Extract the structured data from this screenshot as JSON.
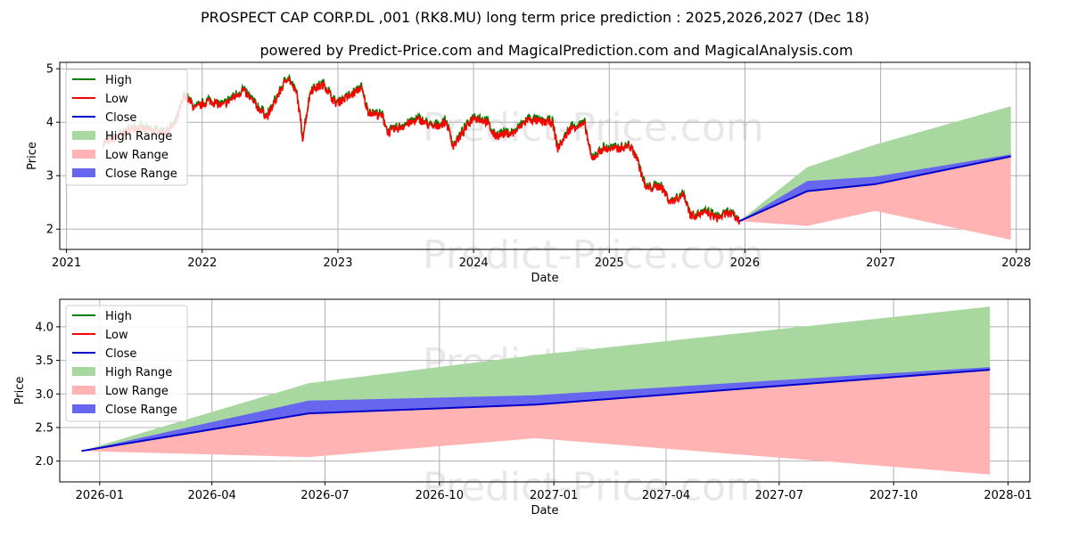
{
  "title": "PROSPECT CAP CORP.DL ,001 (RK8.MU) long term price prediction : 2025,2026,2027 (Dec 18)",
  "subtitle": "powered by Predict-Price.com and MagicalPrediction.com and MagicalAnalysis.com",
  "watermark": "Predict-Price.com",
  "colors": {
    "high": "#008000",
    "low": "#ff0000",
    "close": "#0000cc",
    "high_range": "#a8d8a0",
    "low_range": "#ffb3b3",
    "close_range": "#6666ee",
    "grid": "#b0b0b0",
    "watermark": "#e8e8e8"
  },
  "legend": {
    "high": "High",
    "low": "Low",
    "close": "Close",
    "high_range": "High Range",
    "low_range": "Low Range",
    "close_range": "Close Range"
  },
  "chart_data": [
    {
      "type": "line",
      "name": "long-term",
      "xlabel": "Date",
      "ylabel": "Price",
      "xlim": [
        2020.95,
        2028.1
      ],
      "ylim": [
        1.62,
        5.12
      ],
      "xticks": [
        {
          "v": 2021,
          "label": "2021"
        },
        {
          "v": 2022,
          "label": "2022"
        },
        {
          "v": 2023,
          "label": "2023"
        },
        {
          "v": 2024,
          "label": "2024"
        },
        {
          "v": 2025,
          "label": "2025"
        },
        {
          "v": 2026,
          "label": "2026"
        },
        {
          "v": 2027,
          "label": "2027"
        },
        {
          "v": 2028,
          "label": "2028"
        }
      ],
      "yticks": [
        {
          "v": 2,
          "label": "2"
        },
        {
          "v": 3,
          "label": "3"
        },
        {
          "v": 4,
          "label": "4"
        },
        {
          "v": 5,
          "label": "5"
        }
      ],
      "history_keypoints": [
        [
          2021.27,
          3.6
        ],
        [
          2021.4,
          3.75
        ],
        [
          2021.5,
          3.9
        ],
        [
          2021.6,
          3.85
        ],
        [
          2021.72,
          3.8
        ],
        [
          2021.8,
          3.95
        ],
        [
          2021.87,
          4.5
        ],
        [
          2021.95,
          4.25
        ],
        [
          2022.05,
          4.4
        ],
        [
          2022.15,
          4.3
        ],
        [
          2022.3,
          4.6
        ],
        [
          2022.4,
          4.3
        ],
        [
          2022.48,
          4.1
        ],
        [
          2022.58,
          4.6
        ],
        [
          2022.63,
          4.85
        ],
        [
          2022.7,
          4.5
        ],
        [
          2022.74,
          3.7
        ],
        [
          2022.8,
          4.6
        ],
        [
          2022.9,
          4.7
        ],
        [
          2022.98,
          4.35
        ],
        [
          2023.1,
          4.5
        ],
        [
          2023.17,
          4.65
        ],
        [
          2023.22,
          4.2
        ],
        [
          2023.33,
          4.1
        ],
        [
          2023.37,
          3.8
        ],
        [
          2023.5,
          3.95
        ],
        [
          2023.6,
          4.05
        ],
        [
          2023.7,
          3.9
        ],
        [
          2023.8,
          4.0
        ],
        [
          2023.85,
          3.55
        ],
        [
          2023.92,
          3.8
        ],
        [
          2024.0,
          4.1
        ],
        [
          2024.1,
          4.0
        ],
        [
          2024.15,
          3.75
        ],
        [
          2024.3,
          3.8
        ],
        [
          2024.4,
          4.05
        ],
        [
          2024.5,
          4.0
        ],
        [
          2024.58,
          4.0
        ],
        [
          2024.62,
          3.5
        ],
        [
          2024.72,
          3.9
        ],
        [
          2024.82,
          3.95
        ],
        [
          2024.87,
          3.3
        ],
        [
          2024.95,
          3.5
        ],
        [
          2025.05,
          3.5
        ],
        [
          2025.15,
          3.55
        ],
        [
          2025.2,
          3.35
        ],
        [
          2025.27,
          2.75
        ],
        [
          2025.38,
          2.8
        ],
        [
          2025.45,
          2.5
        ],
        [
          2025.55,
          2.65
        ],
        [
          2025.6,
          2.25
        ],
        [
          2025.72,
          2.3
        ],
        [
          2025.8,
          2.2
        ],
        [
          2025.88,
          2.3
        ],
        [
          2025.96,
          2.15
        ]
      ],
      "forecast_x": [
        2025.96,
        2026.46,
        2026.96,
        2027.96
      ],
      "close": [
        2.15,
        2.71,
        2.84,
        3.36
      ],
      "close_range_upper": [
        2.15,
        2.9,
        2.98,
        3.4
      ],
      "high_range_upper": [
        2.15,
        3.16,
        3.58,
        4.3
      ],
      "low_range_lower": [
        2.15,
        2.06,
        2.34,
        1.8
      ]
    },
    {
      "type": "line",
      "name": "forecast-zoom",
      "xlabel": "Date",
      "ylabel": "Price",
      "xlim": [
        2025.912,
        2028.048
      ],
      "ylim": [
        1.69,
        4.41
      ],
      "xticks": [
        {
          "v": 2026.0,
          "label": "2026-01"
        },
        {
          "v": 2026.247,
          "label": "2026-04"
        },
        {
          "v": 2026.496,
          "label": "2026-07"
        },
        {
          "v": 2026.748,
          "label": "2026-10"
        },
        {
          "v": 2027.0,
          "label": "2027-01"
        },
        {
          "v": 2027.247,
          "label": "2027-04"
        },
        {
          "v": 2027.496,
          "label": "2027-07"
        },
        {
          "v": 2027.748,
          "label": "2027-10"
        },
        {
          "v": 2028.0,
          "label": "2028-01"
        }
      ],
      "yticks": [
        {
          "v": 2.0,
          "label": "2.0"
        },
        {
          "v": 2.5,
          "label": "2.5"
        },
        {
          "v": 3.0,
          "label": "3.0"
        },
        {
          "v": 3.5,
          "label": "3.5"
        },
        {
          "v": 4.0,
          "label": "4.0"
        }
      ],
      "forecast_x": [
        2025.96,
        2026.46,
        2026.96,
        2027.96
      ],
      "close": [
        2.15,
        2.71,
        2.84,
        3.36
      ],
      "close_range_upper": [
        2.15,
        2.9,
        2.98,
        3.4
      ],
      "high_range_upper": [
        2.15,
        3.16,
        3.58,
        4.3
      ],
      "low_range_lower": [
        2.15,
        2.06,
        2.34,
        1.8
      ]
    }
  ]
}
